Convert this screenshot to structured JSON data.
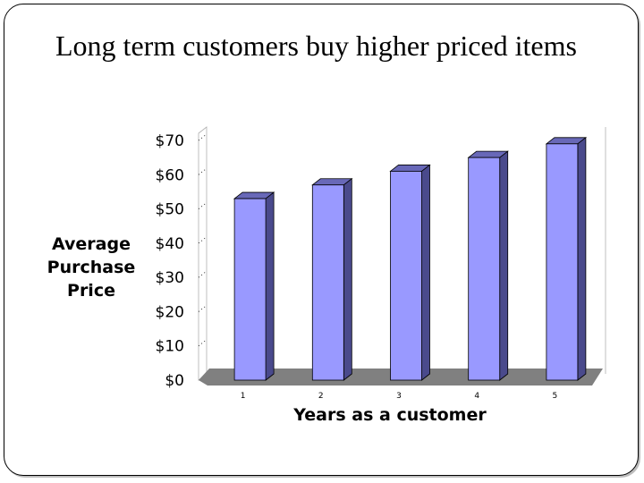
{
  "slide": {
    "title": "Long term customers buy higher priced items"
  },
  "chart_data": {
    "type": "bar",
    "style": "3d-column",
    "title": "",
    "xlabel": "Years as a customer",
    "ylabel": "Average Purchase Price",
    "categories": [
      "1",
      "2",
      "3",
      "4",
      "5"
    ],
    "values": [
      53,
      57,
      61,
      65,
      69
    ],
    "ylim": [
      0,
      70
    ],
    "y_ticks": [
      0,
      10,
      20,
      30,
      40,
      50,
      60,
      70
    ],
    "y_tick_labels": [
      "$0",
      "$10",
      "$20",
      "$30",
      "$40",
      "$50",
      "$60",
      "$70"
    ],
    "grid": true,
    "legend": "none",
    "colors": {
      "bar_front": "#9999ff",
      "bar_side": "#4a4a8c",
      "bar_top": "#6868b8",
      "floor": "#808080",
      "grid": "#000000"
    }
  }
}
